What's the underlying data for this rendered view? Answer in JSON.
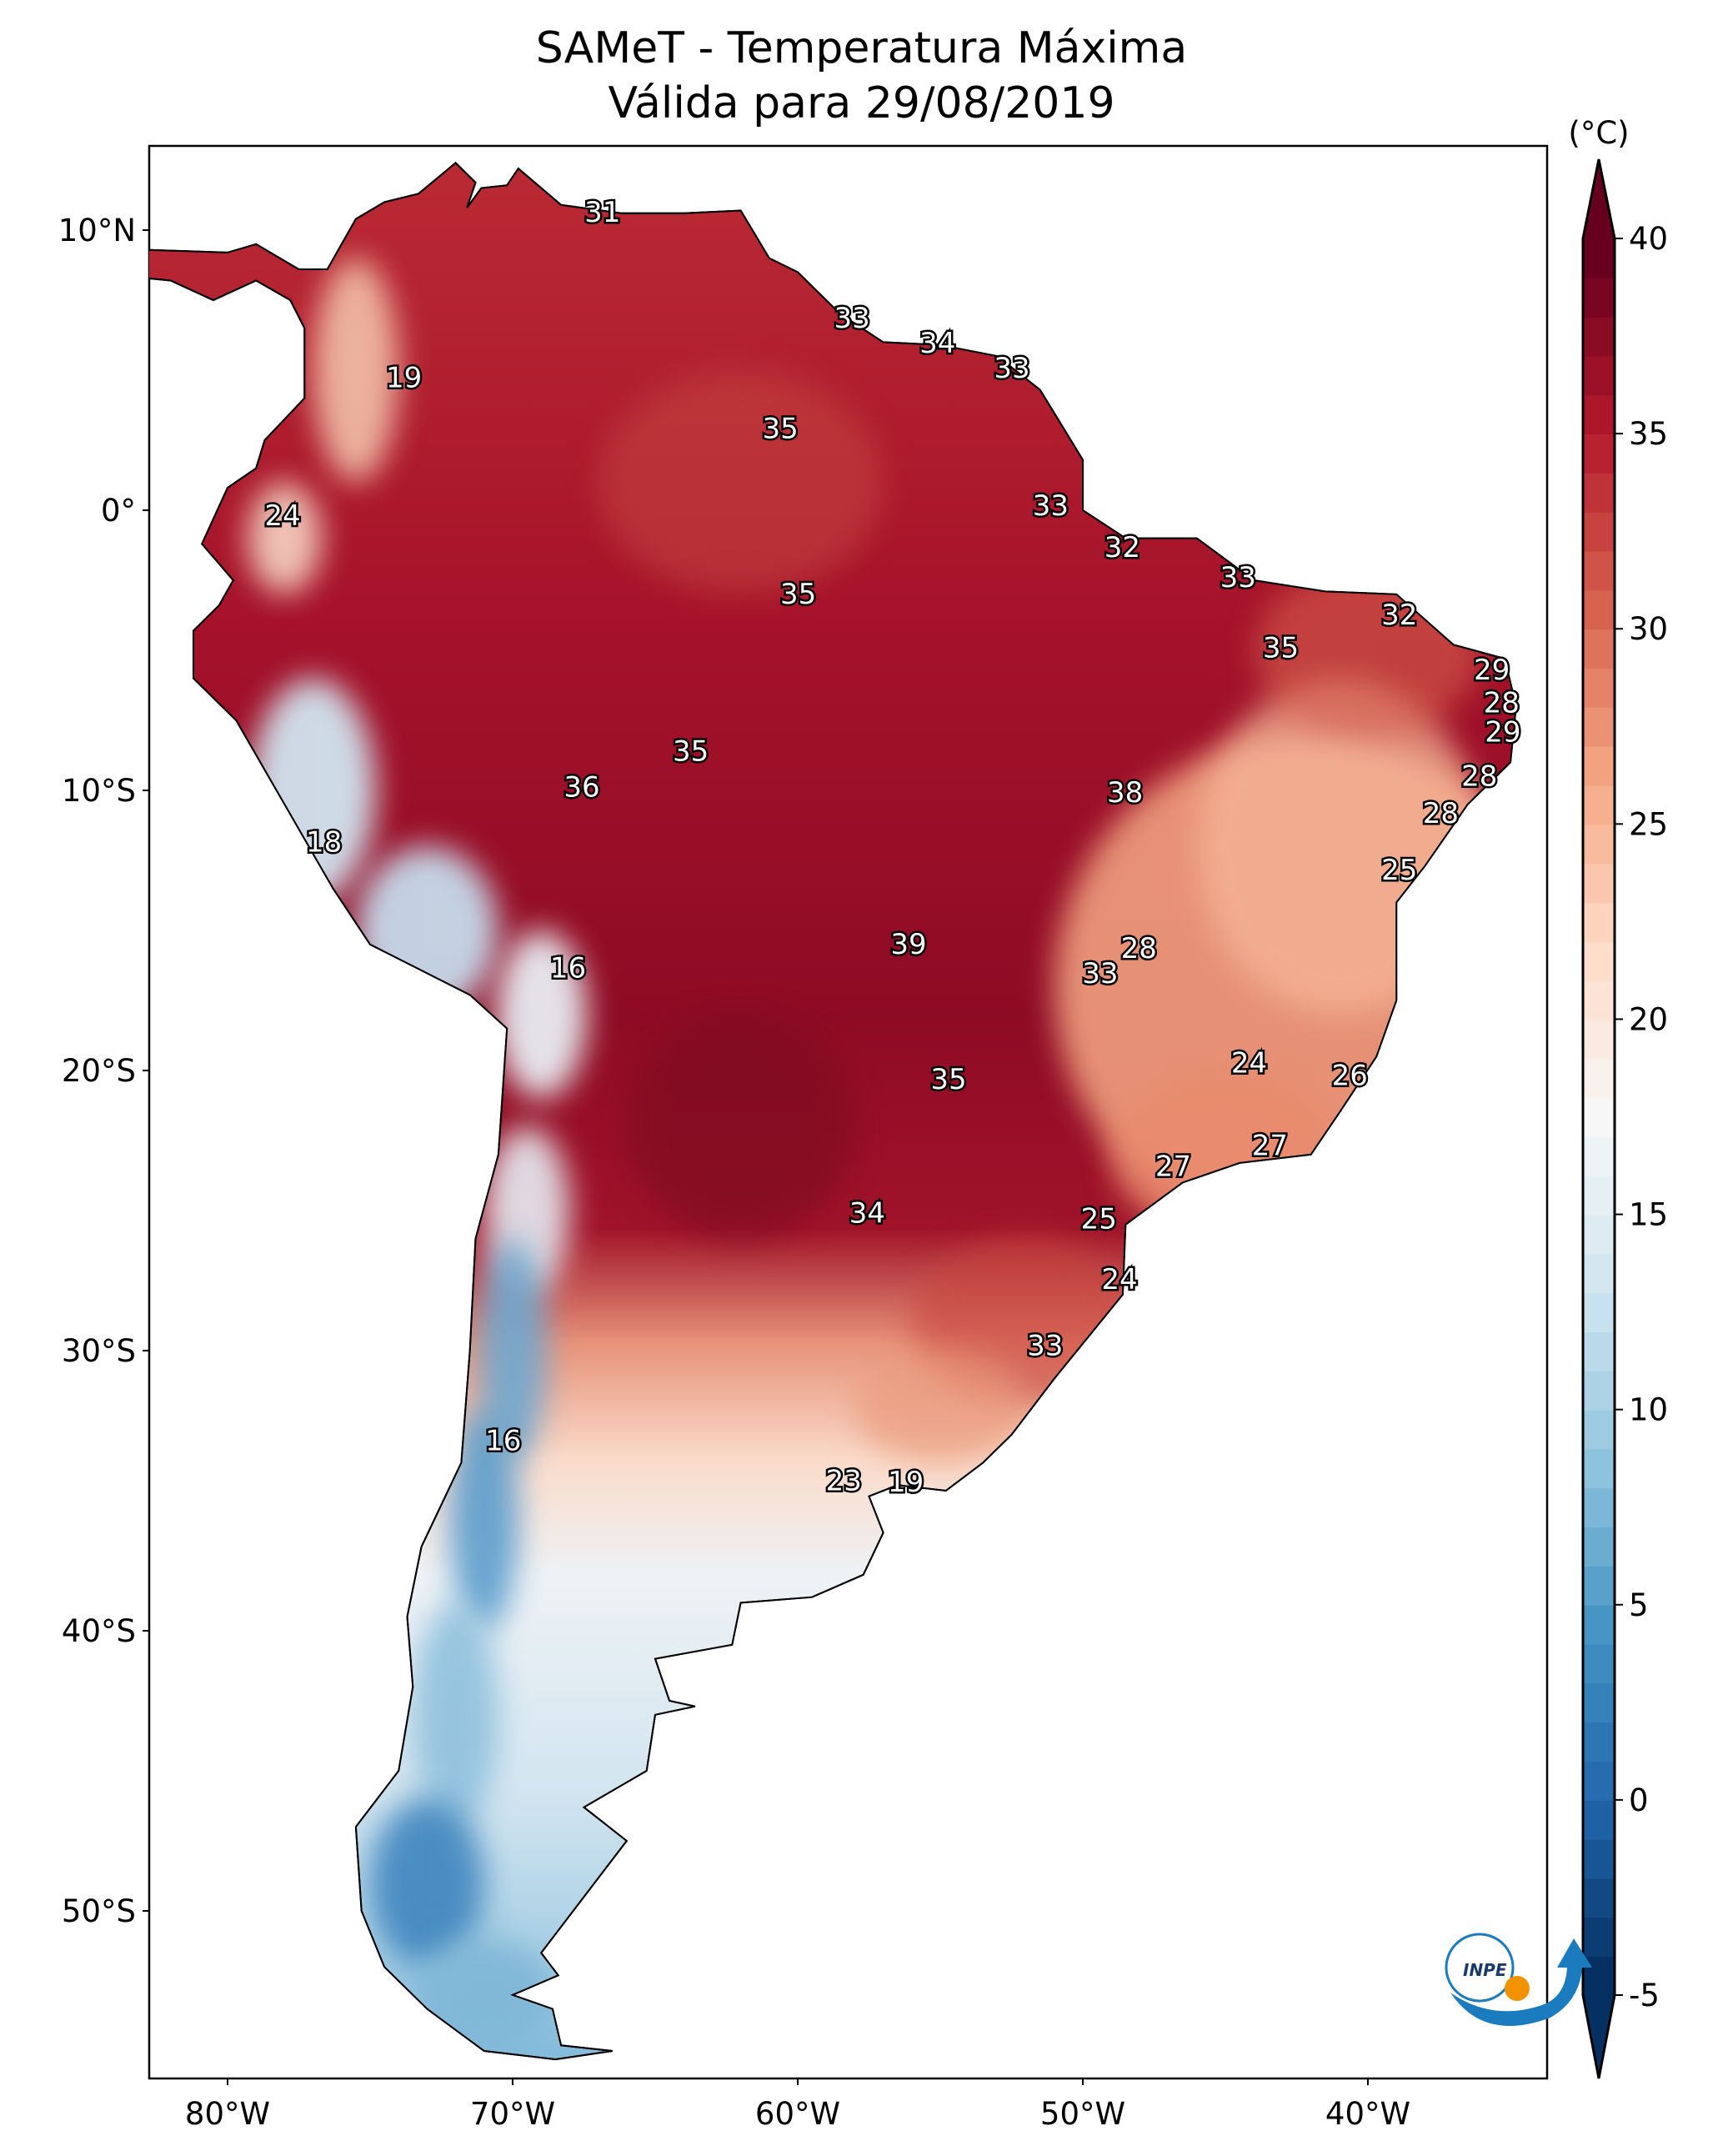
{
  "title": {
    "line1": "SAMeT - Temperatura Máxima",
    "line2": "Válida para 29/08/2019"
  },
  "colorbar": {
    "unit": "(°C)",
    "ticks": [
      "40",
      "35",
      "30",
      "25",
      "20",
      "15",
      "10",
      "5",
      "0",
      "-5"
    ],
    "min": -5,
    "max": 40,
    "colors": [
      "#053061",
      "#2166ac",
      "#4393c3",
      "#92c5de",
      "#d1e5f0",
      "#f7f7f7",
      "#fddbc7",
      "#f4a582",
      "#d6604d",
      "#b2182b",
      "#67001f"
    ]
  },
  "axes": {
    "lat_ticks": [
      "10°N",
      "0°",
      "10°S",
      "20°S",
      "30°S",
      "40°S",
      "50°S"
    ],
    "lon_ticks": [
      "80°W",
      "70°W",
      "60°W",
      "50°W",
      "40°W"
    ]
  },
  "station_labels": [
    "31",
    "19",
    "33",
    "34",
    "33",
    "35",
    "24",
    "33",
    "32",
    "35",
    "33",
    "32",
    "35",
    "29",
    "28",
    "29",
    "35",
    "36",
    "38",
    "28",
    "28",
    "18",
    "25",
    "39",
    "28",
    "16",
    "33",
    "24",
    "26",
    "35",
    "27",
    "27",
    "34",
    "25",
    "24",
    "33",
    "16",
    "23",
    "19"
  ],
  "logo": {
    "text": "INPE"
  }
}
